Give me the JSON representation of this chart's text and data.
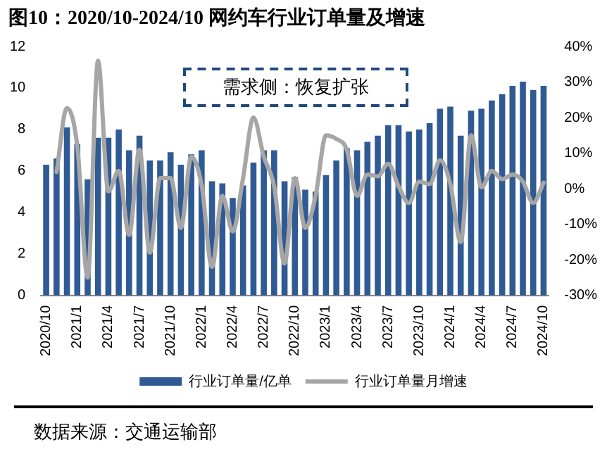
{
  "chart_data": {
    "type": "bar",
    "title": "图10：2020/10-2024/10 网约车行业订单量及增速",
    "categories": [
      "2020/10",
      null,
      null,
      "2021/1",
      null,
      null,
      "2021/4",
      null,
      null,
      "2021/7",
      null,
      null,
      "2021/10",
      null,
      null,
      "2022/1",
      null,
      null,
      "2022/4",
      null,
      null,
      "2022/7",
      null,
      null,
      "2022/10",
      null,
      null,
      "2023/1",
      null,
      null,
      "2023/4",
      null,
      null,
      "2023/7",
      null,
      null,
      "2023/10",
      null,
      null,
      "2024/1",
      null,
      null,
      "2024/4",
      null,
      null,
      "2024/7",
      null,
      null,
      "2024/10"
    ],
    "series": [
      {
        "name": "行业订单量/亿单",
        "color": "#2f5a94",
        "values": [
          6.3,
          6.6,
          8.1,
          7.3,
          5.6,
          7.6,
          7.6,
          8.0,
          7.0,
          7.7,
          6.5,
          6.5,
          6.9,
          6.3,
          6.8,
          7.0,
          5.5,
          5.4,
          4.7,
          5.3,
          6.4,
          7.0,
          7.0,
          5.5,
          5.7,
          5.1,
          5.0,
          5.8,
          6.5,
          7.1,
          7.0,
          7.4,
          7.7,
          8.2,
          8.2,
          7.9,
          8.0,
          8.3,
          9.0,
          9.1,
          7.7,
          8.9,
          9.0,
          9.4,
          9.7,
          10.1,
          10.3,
          9.9,
          10.1
        ]
      },
      {
        "name": "行业订单量月增速",
        "type": "line",
        "axis": "y2",
        "color": "#a6a6a6",
        "values": [
          null,
          4.7,
          22.7,
          12,
          -25,
          36,
          -0.7,
          5,
          -13,
          11,
          -18,
          3,
          3,
          -11,
          9,
          1,
          -22,
          -2,
          -12,
          3,
          20,
          9,
          0.7,
          -21,
          3,
          -11,
          -2,
          15,
          14,
          11,
          -2,
          4,
          3.5,
          7,
          0.7,
          -4,
          2,
          1.3,
          8,
          1.3,
          -15,
          15,
          0.4,
          5,
          2.7,
          4,
          2,
          -4,
          1.7
        ]
      }
    ],
    "ylim": [
      0,
      12
    ],
    "yticks": [
      0,
      2,
      4,
      6,
      8,
      10,
      12
    ],
    "y2lim": [
      -30,
      40
    ],
    "y2ticks": [
      {
        "value": -30,
        "label": "-30%"
      },
      {
        "value": -20,
        "label": "-20%"
      },
      {
        "value": -10,
        "label": "-10%"
      },
      {
        "value": 0,
        "label": "0%"
      },
      {
        "value": 10,
        "label": "10%"
      },
      {
        "value": 20,
        "label": "20%"
      },
      {
        "value": 30,
        "label": "30%"
      },
      {
        "value": 40,
        "label": "40%"
      }
    ],
    "grid": false,
    "legend": "bottom",
    "marker": "none",
    "line_style": "solid",
    "annotations": [
      "需求侧：恢复扩张",
      "数据来源：交通运输部"
    ]
  }
}
